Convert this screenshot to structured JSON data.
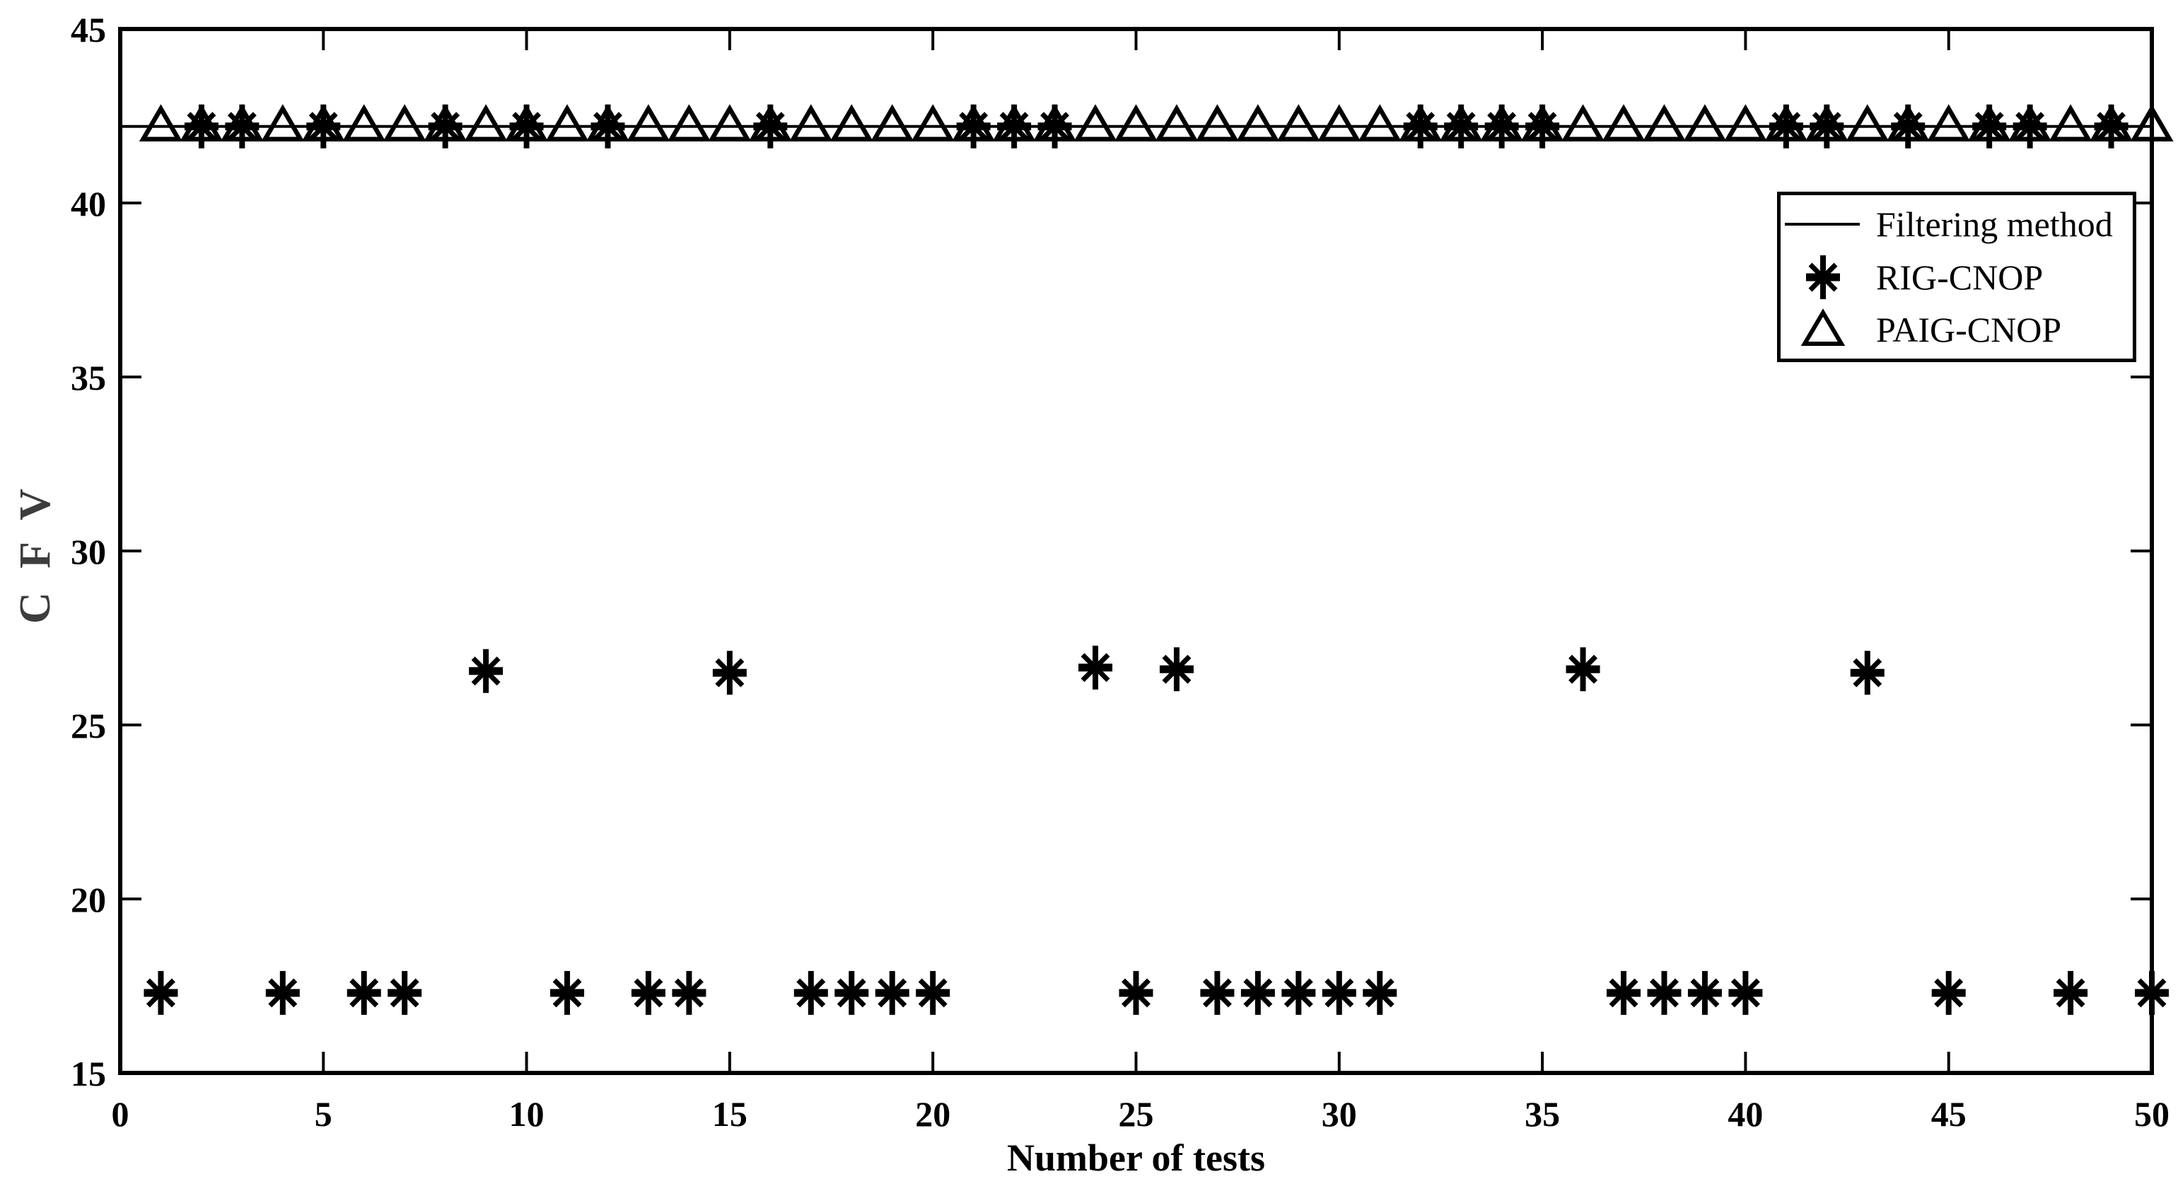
{
  "figure": {
    "bg_color": "#ffffff",
    "ink_color": "#000000",
    "ylabel_color": "#3d3d3d"
  },
  "axes": {
    "xlabel": "Number of tests",
    "ylabel": "C F V",
    "xlim": [
      0,
      50
    ],
    "ylim": [
      15,
      45
    ],
    "x_ticks": [
      0,
      5,
      10,
      15,
      20,
      25,
      30,
      35,
      40,
      45,
      50
    ],
    "y_ticks": [
      15,
      20,
      25,
      30,
      35,
      40,
      45
    ]
  },
  "legend": {
    "items": [
      {
        "marker": "line-marker-icon",
        "label": "Filtering method"
      },
      {
        "marker": "asterisk-marker-icon",
        "label": "RIG-CNOP"
      },
      {
        "marker": "triangle-marker-icon",
        "label": "PAIG-CNOP"
      }
    ]
  },
  "chart_data": {
    "type": "scatter",
    "title": "",
    "xlabel": "Number of tests",
    "ylabel": "C F V",
    "xlim": [
      0,
      50
    ],
    "ylim": [
      15,
      45
    ],
    "grid": false,
    "legend_position": "upper-right",
    "series": [
      {
        "name": "Filtering method",
        "type": "line",
        "color": "#000000",
        "x": [
          0,
          50
        ],
        "y": [
          42.2,
          42.2
        ]
      },
      {
        "name": "RIG-CNOP",
        "type": "scatter",
        "marker": "asterisk",
        "color": "#000000",
        "x": [
          1,
          2,
          3,
          4,
          5,
          6,
          7,
          8,
          9,
          10,
          11,
          12,
          13,
          14,
          15,
          16,
          17,
          18,
          19,
          20,
          21,
          22,
          23,
          24,
          25,
          26,
          27,
          28,
          29,
          30,
          31,
          32,
          33,
          34,
          35,
          36,
          37,
          38,
          39,
          40,
          41,
          42,
          43,
          44,
          45,
          46,
          47,
          48,
          49,
          50
        ],
        "y": [
          17.3,
          42.2,
          42.2,
          17.3,
          42.2,
          17.3,
          17.3,
          42.2,
          26.55,
          42.2,
          17.3,
          42.2,
          17.3,
          17.3,
          26.5,
          42.2,
          17.3,
          17.3,
          17.3,
          17.3,
          42.2,
          42.2,
          42.2,
          26.65,
          17.3,
          26.6,
          17.3,
          17.3,
          17.3,
          17.3,
          17.3,
          42.2,
          42.2,
          42.2,
          42.2,
          26.6,
          17.3,
          17.3,
          17.3,
          17.3,
          42.2,
          42.2,
          26.5,
          42.2,
          17.3,
          42.2,
          42.2,
          17.3,
          42.2,
          17.3
        ]
      },
      {
        "name": "PAIG-CNOP",
        "type": "scatter",
        "marker": "triangle",
        "color": "#000000",
        "x": [
          1,
          2,
          3,
          4,
          5,
          6,
          7,
          8,
          9,
          10,
          11,
          12,
          13,
          14,
          15,
          16,
          17,
          18,
          19,
          20,
          21,
          22,
          23,
          24,
          25,
          26,
          27,
          28,
          29,
          30,
          31,
          32,
          33,
          34,
          35,
          36,
          37,
          38,
          39,
          40,
          41,
          42,
          43,
          44,
          45,
          46,
          47,
          48,
          49,
          50
        ],
        "y": [
          42.2,
          42.2,
          42.2,
          42.2,
          42.2,
          42.2,
          42.2,
          42.2,
          42.2,
          42.2,
          42.2,
          42.2,
          42.2,
          42.2,
          42.2,
          42.2,
          42.2,
          42.2,
          42.2,
          42.2,
          42.2,
          42.2,
          42.2,
          42.2,
          42.2,
          42.2,
          42.2,
          42.2,
          42.2,
          42.2,
          42.2,
          42.2,
          42.2,
          42.2,
          42.2,
          42.2,
          42.2,
          42.2,
          42.2,
          42.2,
          42.2,
          42.2,
          42.2,
          42.2,
          42.2,
          42.2,
          42.2,
          42.2,
          42.2,
          42.2
        ]
      }
    ]
  }
}
